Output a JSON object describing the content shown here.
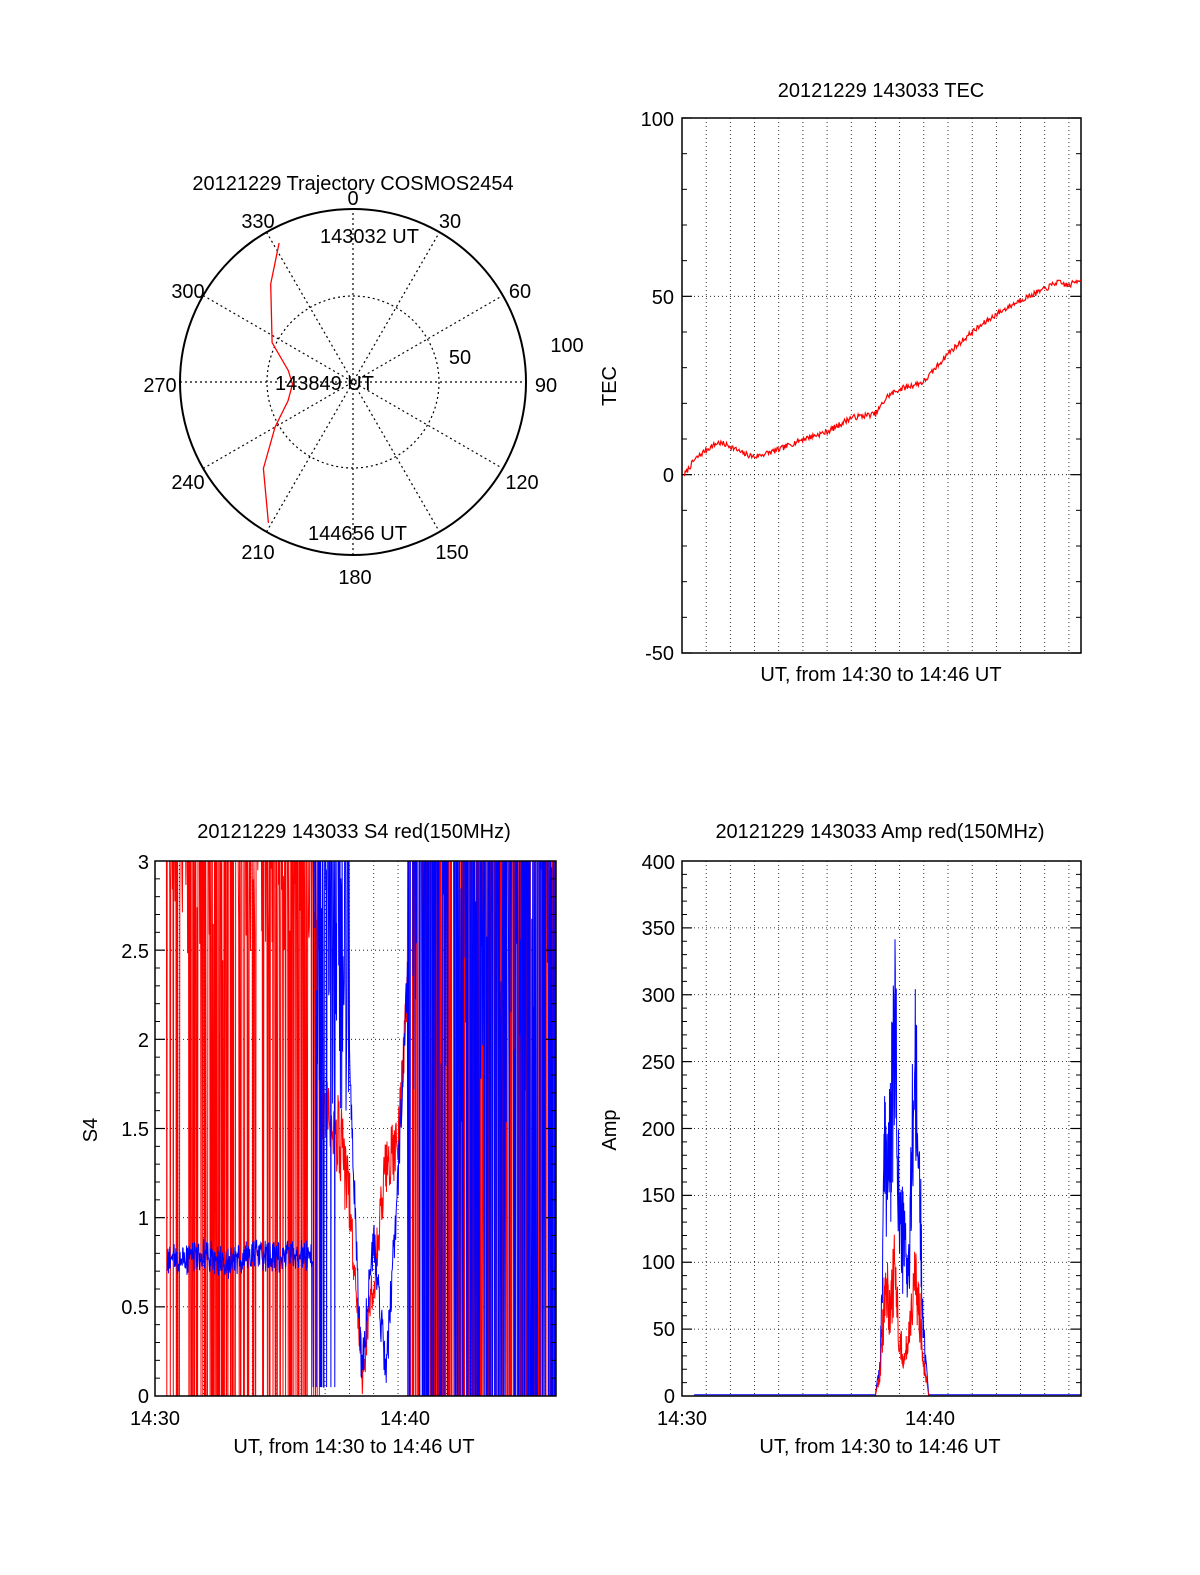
{
  "chart_data": [
    {
      "type": "polar",
      "title": "20121229 Trajectory COSMOS2454",
      "azimuth_labels": [
        "0",
        "30",
        "60",
        "90",
        "120",
        "150",
        "180",
        "210",
        "240",
        "270",
        "300",
        "330"
      ],
      "radial_labels": [
        "50",
        "100"
      ],
      "radial_range": [
        0,
        100
      ],
      "trajectory": {
        "color": "#ff0000",
        "azimuth": [
          332,
          320,
          296,
          280,
          268,
          254,
          240,
          226,
          211
        ],
        "zenith": [
          91,
          74,
          52,
          38,
          35,
          39,
          52,
          72,
          95
        ]
      },
      "annotations": [
        "143032 UT",
        "143849 UT",
        "144656 UT"
      ]
    },
    {
      "type": "line",
      "title": "20121229 143033 TEC",
      "xlabel": "UT, from 14:30 to 14:46 UT",
      "ylabel": "TEC",
      "ylim": [
        -50,
        100
      ],
      "yticks": [
        "-50",
        "0",
        "50",
        "100"
      ],
      "xlim_minutes": [
        0,
        16.5
      ],
      "grid": true,
      "series": [
        {
          "color": "#ff0000",
          "x": [
            0.1,
            0.5,
            1.0,
            1.5,
            2.0,
            2.5,
            3.0,
            3.5,
            4.0,
            5.0,
            6.0,
            7.0,
            8.0,
            8.5,
            9.0,
            9.5,
            10.0,
            11.0,
            12.0,
            13.0,
            14.0,
            15.0,
            15.5,
            16.0,
            16.5
          ],
          "y": [
            0,
            4,
            7,
            9,
            8,
            6,
            5,
            6,
            7,
            10,
            12,
            16,
            17,
            22,
            24,
            25,
            26,
            34,
            40,
            45,
            49,
            52,
            54,
            53,
            55
          ]
        }
      ]
    },
    {
      "type": "line",
      "title": "20121229 143033 S4 red(150MHz)",
      "xlabel": "UT, from 14:30 to 14:46 UT",
      "ylabel": "S4",
      "ylim": [
        0,
        3
      ],
      "yticks": [
        "0",
        "0.5",
        "1",
        "1.5",
        "2",
        "2.5",
        "3"
      ],
      "xticks": [
        "14:30",
        "14:40"
      ],
      "xlim_minutes": [
        0,
        16.5
      ],
      "grid": true,
      "series": [
        {
          "color": "#ff0000",
          "x": [
            0,
            1,
            2,
            3,
            4,
            5,
            6,
            6.5,
            7,
            7.5,
            8,
            8.5,
            9,
            9.5,
            10,
            10.5,
            11,
            12,
            13,
            14,
            15,
            16,
            16.5
          ],
          "y": [
            3,
            3,
            3,
            3,
            3,
            2.6,
            2.2,
            1.9,
            1.6,
            1.5,
            1.1,
            0.15,
            0.6,
            1.3,
            1.4,
            2.6,
            3,
            3,
            3,
            3,
            3,
            3,
            3
          ]
        },
        {
          "color": "#0000ff",
          "x": [
            0.5,
            1,
            2,
            3,
            4,
            5,
            6,
            6.5,
            7,
            8,
            8.5,
            9,
            9.5,
            10,
            10.5,
            11,
            12,
            13,
            14,
            15,
            16,
            16.5
          ],
          "y": [
            0.78,
            0.75,
            0.8,
            0.74,
            0.8,
            0.77,
            0.8,
            0.78,
            2.5,
            1.9,
            0.12,
            0.9,
            0.1,
            1.2,
            2.7,
            3,
            3,
            3,
            3,
            3,
            3,
            3
          ]
        }
      ]
    },
    {
      "type": "line",
      "title": "20121229 143033 Amp red(150MHz)",
      "xlabel": "UT, from 14:30 to 14:46 UT",
      "ylabel": "Amp",
      "ylim": [
        0,
        400
      ],
      "yticks": [
        "0",
        "50",
        "100",
        "150",
        "200",
        "250",
        "300",
        "350",
        "400"
      ],
      "xticks": [
        "14:30",
        "14:40"
      ],
      "xlim_minutes": [
        0,
        16.5
      ],
      "grid": true,
      "series": [
        {
          "color": "#0000ff",
          "x": [
            0,
            8.0,
            8.2,
            8.4,
            8.6,
            8.8,
            9.0,
            9.2,
            9.4,
            9.6,
            9.8,
            10.0,
            10.2,
            11,
            16.5
          ],
          "y": [
            1,
            1,
            30,
            220,
            200,
            320,
            150,
            130,
            110,
            290,
            200,
            50,
            1,
            1,
            1
          ]
        },
        {
          "color": "#ff0000",
          "x": [
            0,
            8.0,
            8.2,
            8.4,
            8.6,
            8.8,
            9.0,
            9.2,
            9.4,
            9.6,
            9.8,
            10.0,
            10.2,
            16.5
          ],
          "y": [
            0,
            0,
            20,
            95,
            80,
            110,
            50,
            30,
            60,
            100,
            80,
            30,
            0,
            0
          ]
        }
      ]
    }
  ]
}
